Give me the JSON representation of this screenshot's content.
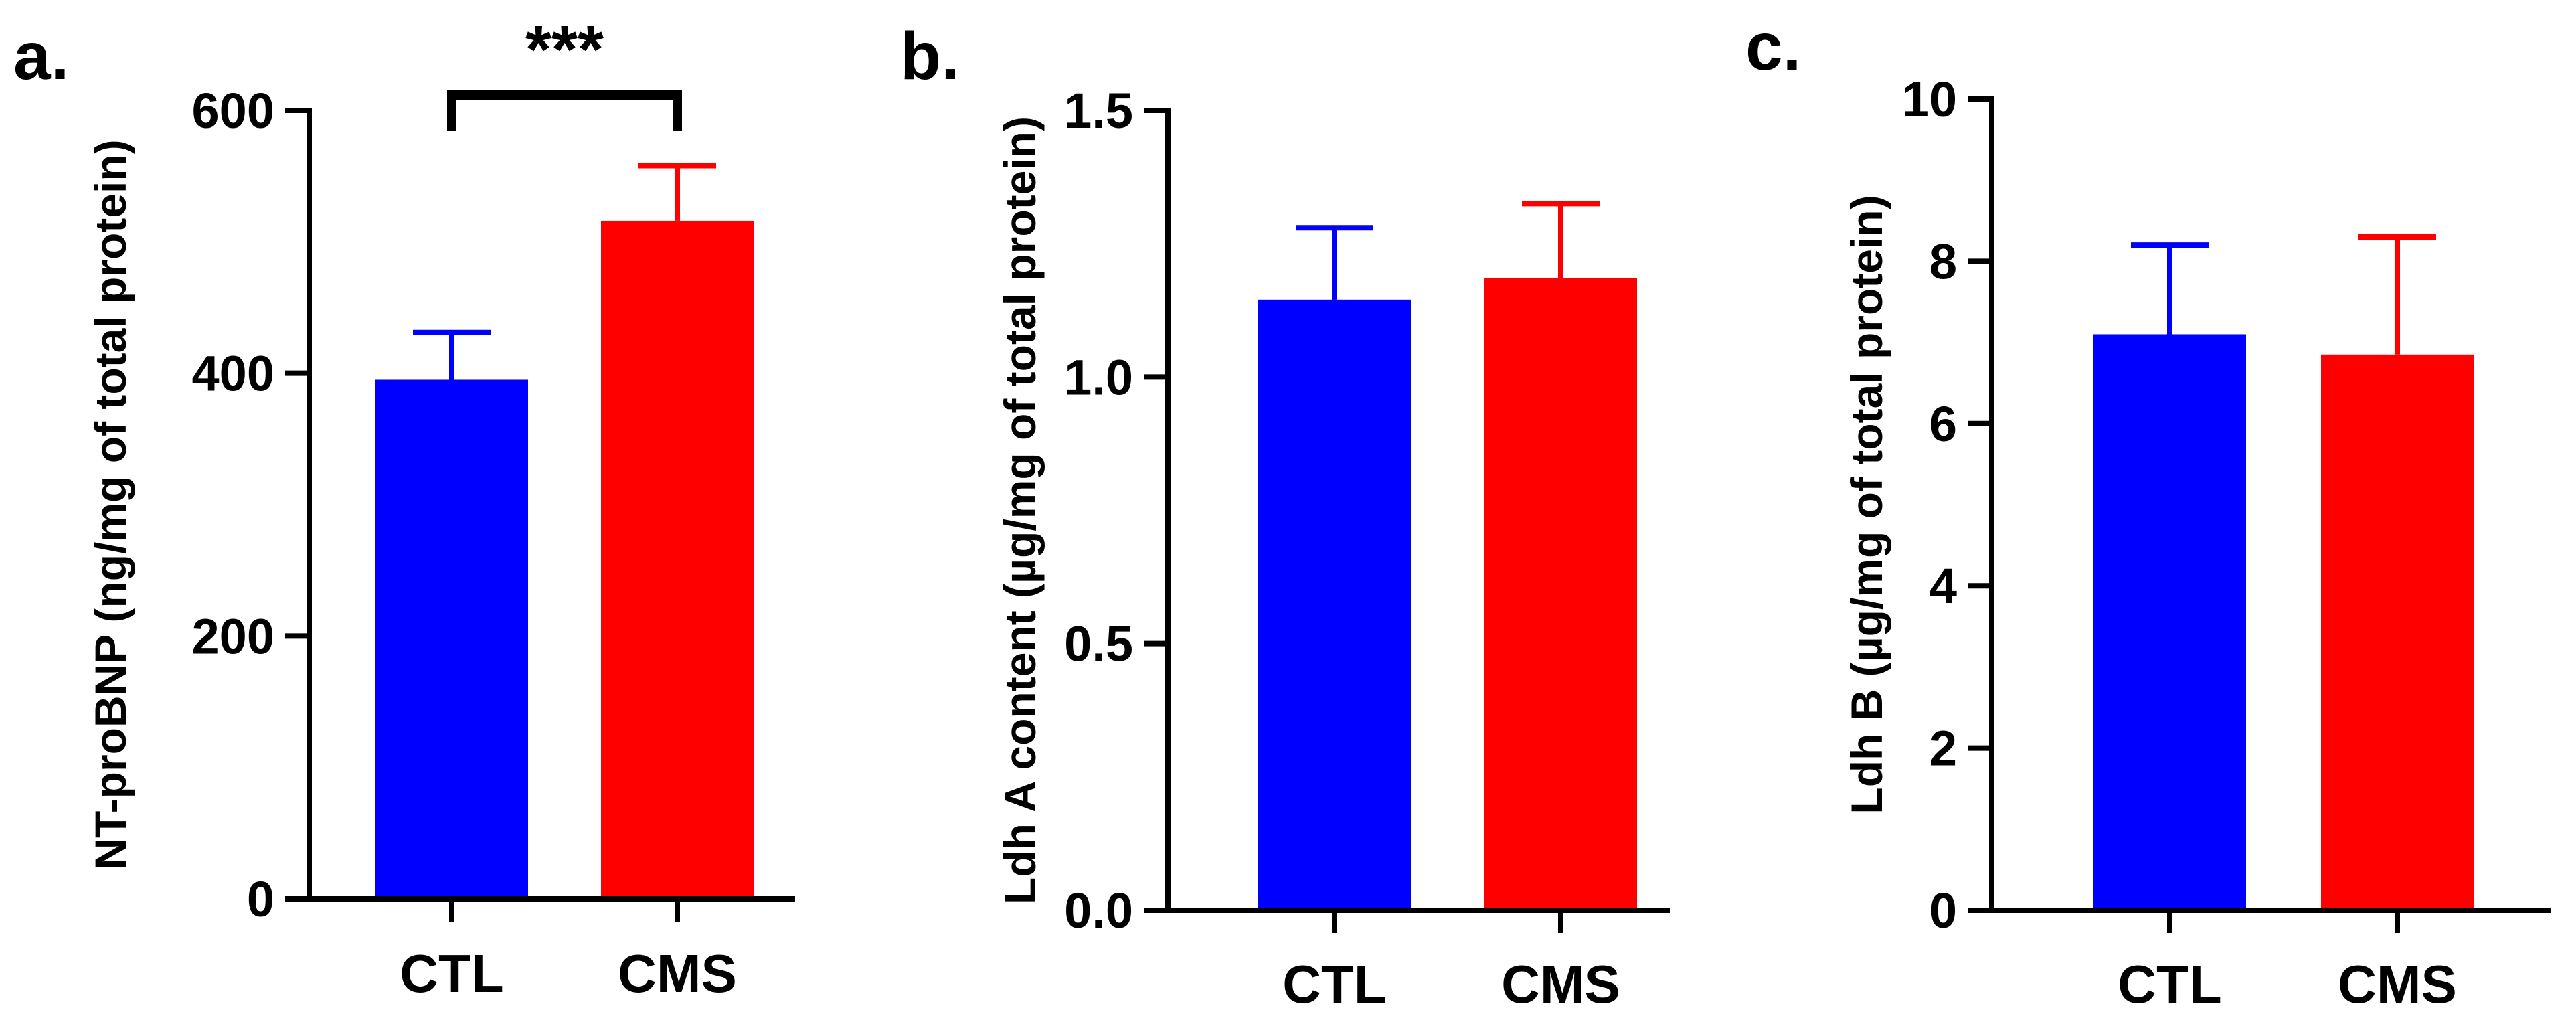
{
  "colors": {
    "ctl": "#0000ff",
    "cms": "#ff0000",
    "axis": "#000000"
  },
  "chart_data": [
    {
      "panel_label": "a.",
      "type": "bar",
      "ylabel": "NT-proBNP (ng/mg of total protein)",
      "ylim": [
        0,
        600
      ],
      "yticks": [
        0,
        200,
        400,
        600
      ],
      "tick_labels": [
        "0",
        "200",
        "400",
        "600"
      ],
      "categories": [
        "CTL",
        "CMS"
      ],
      "values": [
        395,
        516
      ],
      "errors": [
        36,
        42
      ],
      "significance": {
        "label": "***",
        "between": [
          0,
          1
        ]
      }
    },
    {
      "panel_label": "b.",
      "type": "bar",
      "ylabel": "Ldh A content (µg/mg of total protein)",
      "ylim": [
        0,
        1.5
      ],
      "yticks": [
        0,
        0.5,
        1.0,
        1.5
      ],
      "tick_labels": [
        "0.0",
        "0.5",
        "1.0",
        "1.5"
      ],
      "categories": [
        "CTL",
        "CMS"
      ],
      "values": [
        1.145,
        1.185
      ],
      "errors": [
        0.135,
        0.14
      ]
    },
    {
      "panel_label": "c.",
      "type": "bar",
      "ylabel": "Ldh B (µg/mg of total protein)",
      "ylim": [
        0,
        10
      ],
      "yticks": [
        0,
        2,
        4,
        6,
        8,
        10
      ],
      "tick_labels": [
        "0",
        "2",
        "4",
        "6",
        "8",
        "10"
      ],
      "categories": [
        "CTL",
        "CMS"
      ],
      "values": [
        7.1,
        6.85
      ],
      "errors": [
        1.1,
        1.45
      ]
    }
  ]
}
